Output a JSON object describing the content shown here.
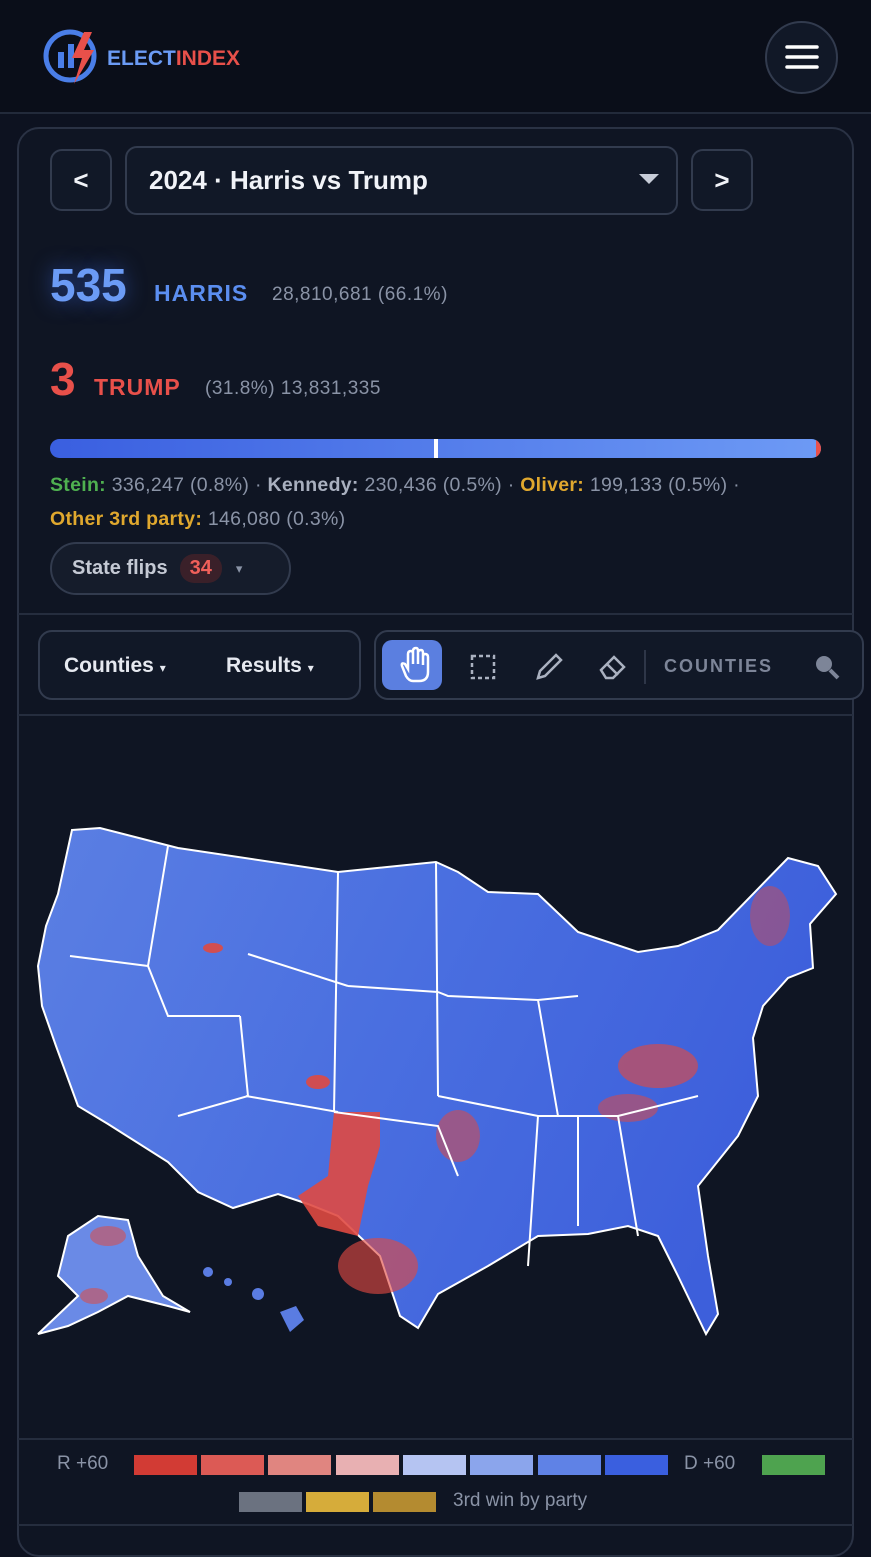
{
  "header": {
    "logo_a": "ELECT",
    "logo_b": "INDEX"
  },
  "selector": {
    "prev": "<",
    "election": "2024 · Harris vs Trump",
    "next": ">"
  },
  "candidates": [
    {
      "electoral_votes": "535",
      "name": "HARRIS",
      "popular": "28,810,681 (66.1%)"
    },
    {
      "electoral_votes": "3",
      "name": "TRUMP",
      "popular": "(31.8%) 13,831,335"
    }
  ],
  "third_party": {
    "separator": "·",
    "entries": [
      {
        "name": "Stein:",
        "value": "336,247 (0.8%)"
      },
      {
        "name": "Kennedy:",
        "value": "230,436 (0.5%)"
      },
      {
        "name": "Oliver:",
        "value": "199,133 (0.5%)"
      },
      {
        "name": "Other 3rd party:",
        "value": "146,080 (0.3%)"
      }
    ]
  },
  "state_flips": {
    "label": "State flips",
    "count": "34",
    "caret": "▾"
  },
  "toolbar": {
    "view": "Counties",
    "mode": "Results",
    "caret": "▾",
    "layer": "COUNTIES"
  },
  "legend": {
    "left": "R +60",
    "right": "D +60",
    "third": "3rd win by party"
  }
}
